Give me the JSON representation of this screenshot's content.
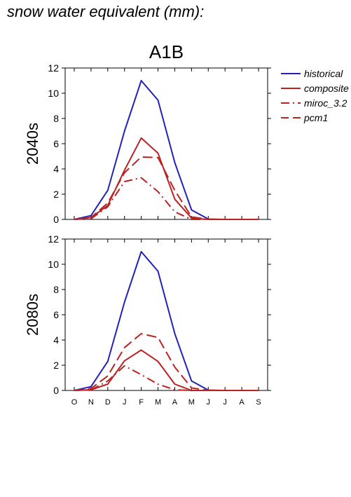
{
  "page": {
    "title": "snow water equivalent (mm):"
  },
  "colors": {
    "historical": "#2222bb",
    "future": "#bb2222",
    "axis": "#000000"
  },
  "legend": {
    "position": "right",
    "entries": [
      {
        "name": "historical",
        "style": "solid",
        "color": "#2222bb"
      },
      {
        "name": "composite",
        "style": "solid",
        "color": "#bb2222"
      },
      {
        "name": "miroc_3.2",
        "style": "dashdot",
        "color": "#bb2222"
      },
      {
        "name": "pcm1",
        "style": "dashed",
        "color": "#bb2222"
      }
    ]
  },
  "chart_data": [
    {
      "type": "line",
      "title": "A1B",
      "ylabel": "2040s",
      "xlabel": "",
      "categories": [
        "O",
        "N",
        "D",
        "J",
        "F",
        "M",
        "A",
        "M",
        "J",
        "J",
        "A",
        "S"
      ],
      "ylim": [
        0,
        12
      ],
      "yticks": [
        0,
        2,
        4,
        6,
        8,
        10,
        12
      ],
      "grid": false,
      "series": [
        {
          "name": "historical",
          "style": "solid",
          "color": "#2222bb",
          "values": [
            0,
            0.3,
            2.3,
            7.0,
            11.0,
            9.45,
            4.5,
            0.75,
            0.03,
            0,
            0,
            0
          ]
        },
        {
          "name": "composite",
          "style": "solid",
          "color": "#bb2222",
          "values": [
            0,
            0.15,
            1.1,
            3.9,
            6.45,
            5.25,
            1.6,
            0.1,
            0,
            0,
            0,
            0
          ]
        },
        {
          "name": "miroc_3.2",
          "style": "dashdot",
          "color": "#bb2222",
          "values": [
            0,
            0.05,
            1.0,
            3.0,
            3.3,
            2.2,
            0.6,
            0,
            0,
            0,
            0,
            0
          ]
        },
        {
          "name": "pcm1",
          "style": "dashed",
          "color": "#bb2222",
          "values": [
            0,
            0.15,
            1.3,
            3.7,
            4.95,
            4.9,
            2.3,
            0.2,
            0,
            0,
            0,
            0
          ]
        }
      ]
    },
    {
      "type": "line",
      "title": "",
      "ylabel": "2080s",
      "xlabel": "",
      "categories": [
        "O",
        "N",
        "D",
        "J",
        "F",
        "M",
        "A",
        "M",
        "J",
        "J",
        "A",
        "S"
      ],
      "ylim": [
        0,
        12
      ],
      "yticks": [
        0,
        2,
        4,
        6,
        8,
        10,
        12
      ],
      "grid": false,
      "series": [
        {
          "name": "historical",
          "style": "solid",
          "color": "#2222bb",
          "values": [
            0,
            0.3,
            2.3,
            7.0,
            11.0,
            9.45,
            4.5,
            0.75,
            0.03,
            0,
            0,
            0
          ]
        },
        {
          "name": "composite",
          "style": "solid",
          "color": "#bb2222",
          "values": [
            0,
            0.05,
            0.5,
            2.35,
            3.2,
            2.3,
            0.5,
            0,
            0,
            0,
            0,
            0
          ]
        },
        {
          "name": "miroc_3.2",
          "style": "dashdot",
          "color": "#bb2222",
          "values": [
            0,
            0.05,
            0.75,
            1.95,
            1.25,
            0.5,
            0.05,
            0,
            0,
            0,
            0,
            0
          ]
        },
        {
          "name": "pcm1",
          "style": "dashed",
          "color": "#bb2222",
          "values": [
            0,
            0.15,
            1.15,
            3.4,
            4.5,
            4.2,
            1.85,
            0.2,
            0,
            0,
            0,
            0
          ]
        }
      ]
    }
  ]
}
